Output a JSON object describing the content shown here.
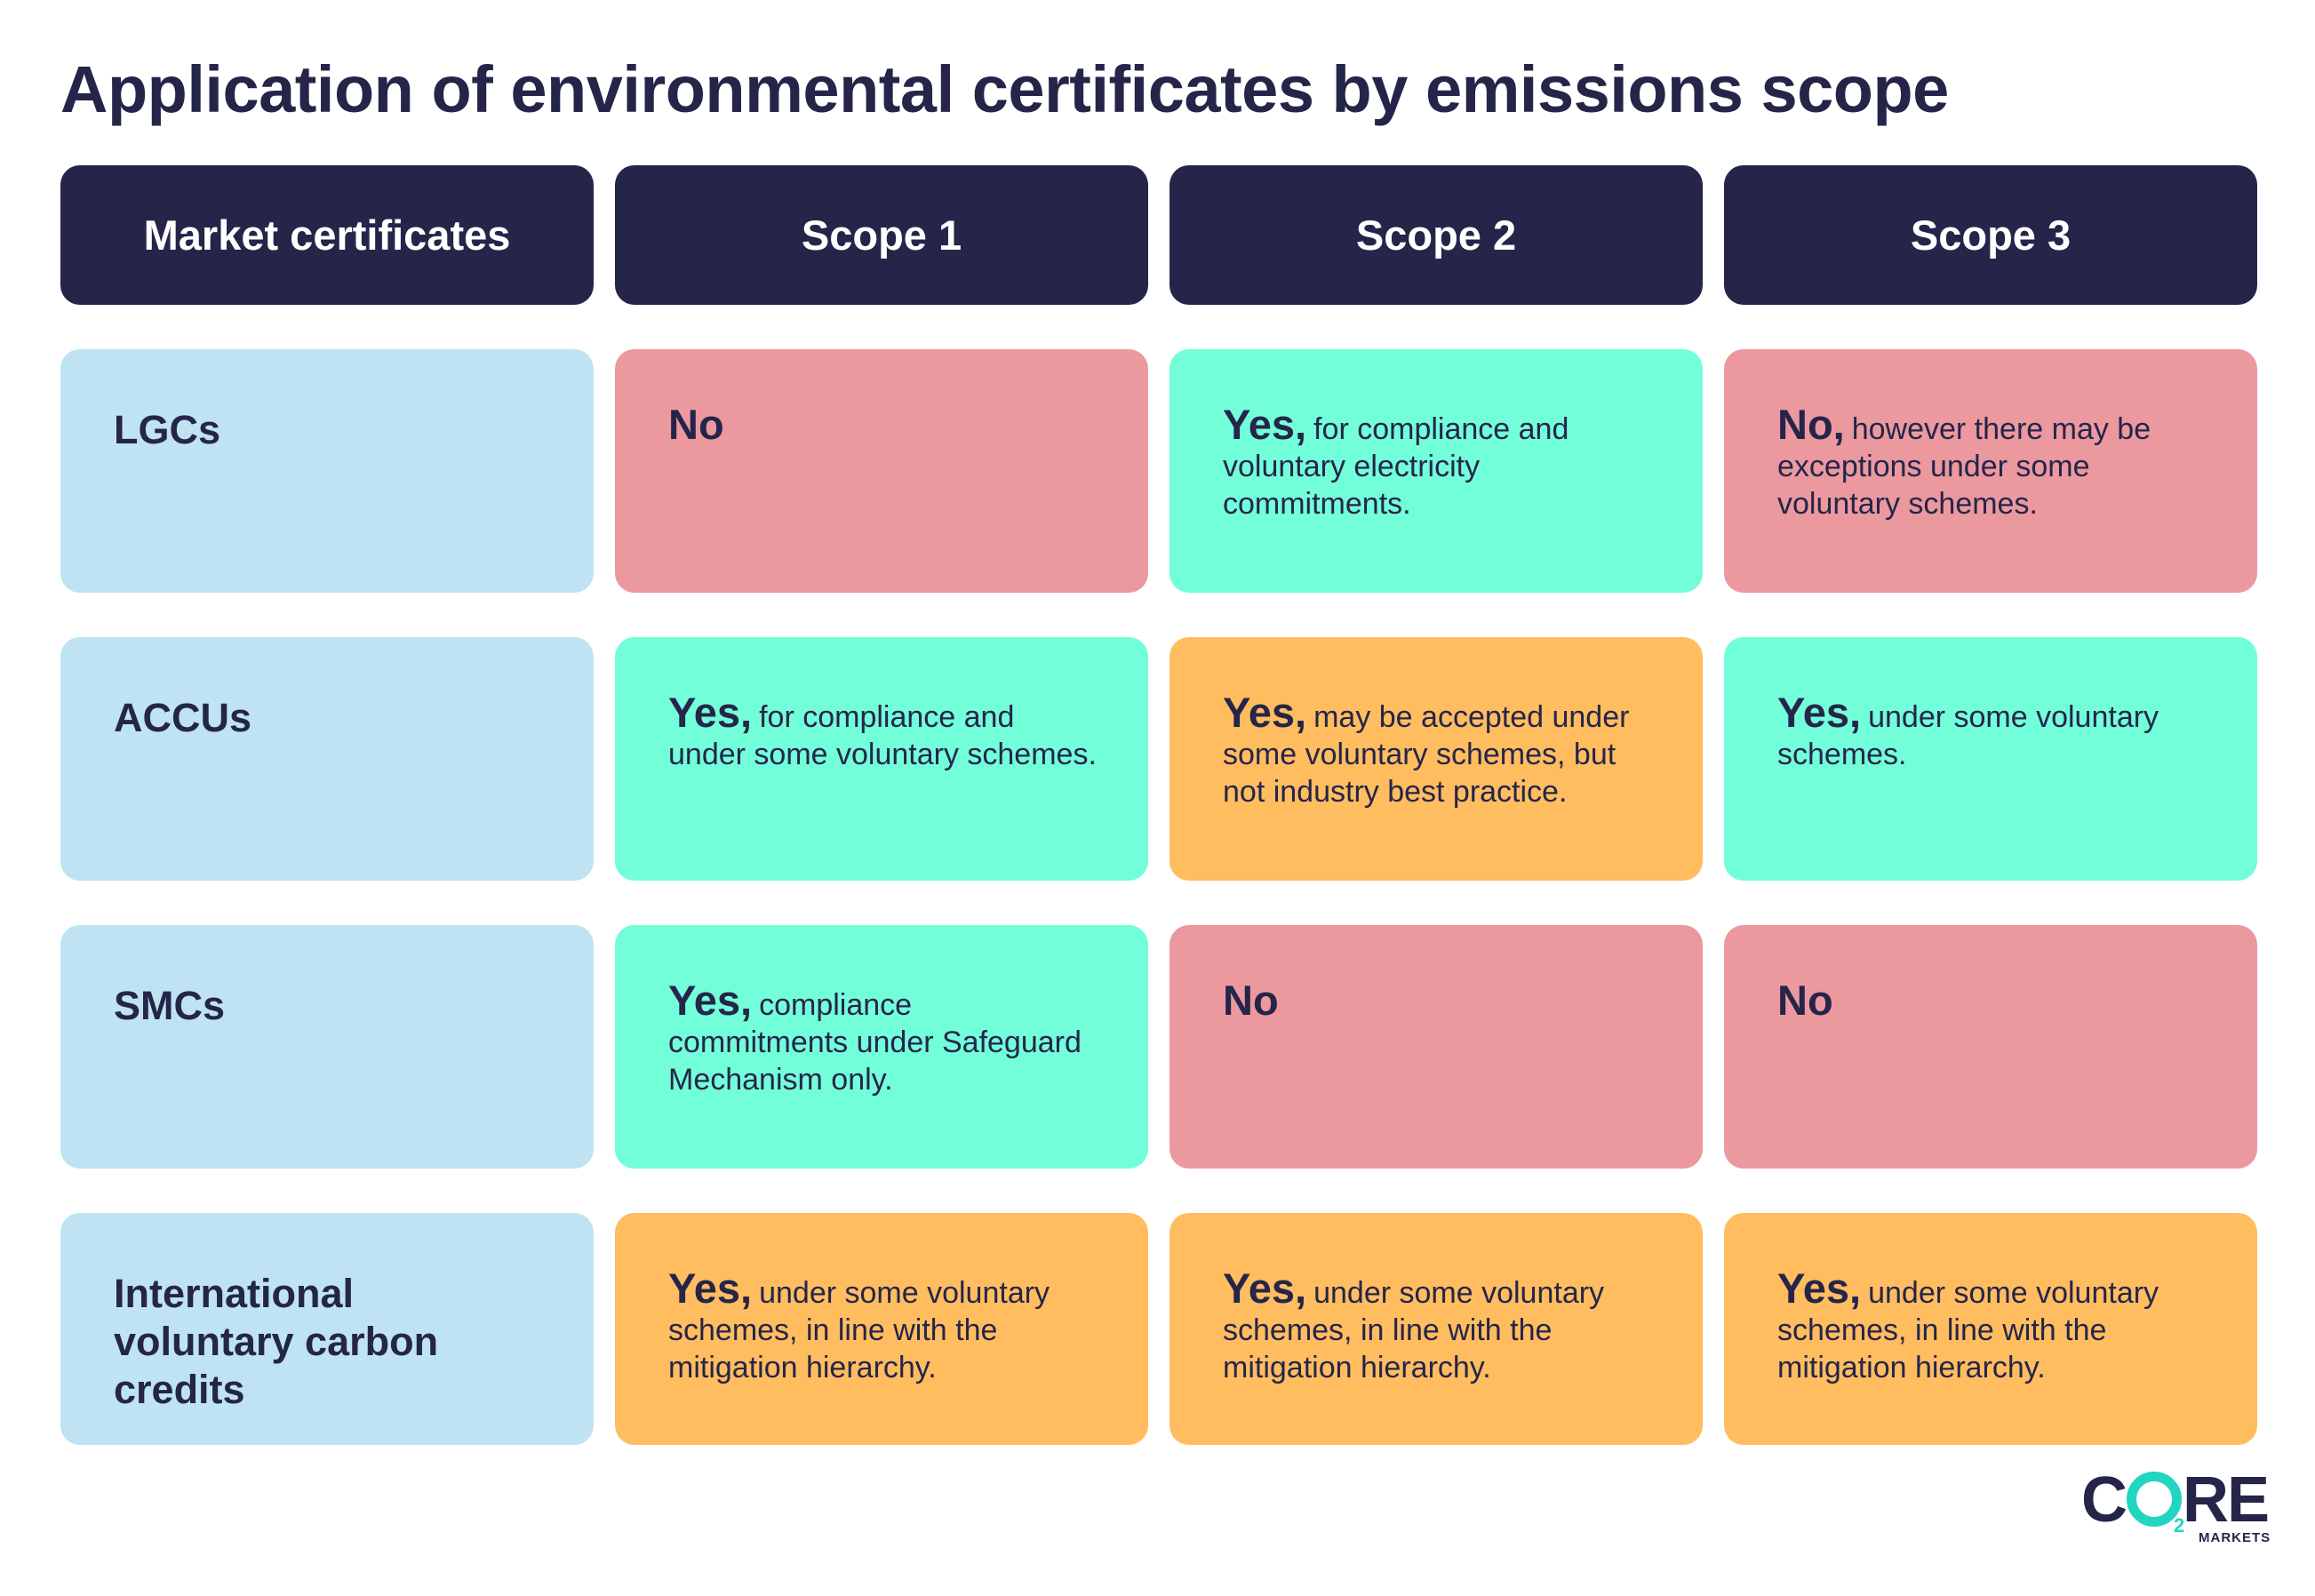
{
  "title": "Application of environmental certificates by emissions scope",
  "columns": [
    "Market certificates",
    "Scope 1",
    "Scope 2",
    "Scope 3"
  ],
  "colors": {
    "header": "#25254a",
    "label_cell": "#bfe3f2",
    "no": "#eb999e",
    "yes": "#72fed9",
    "partial": "#ffbd5f",
    "logo_accent": "#20d6c0"
  },
  "rows": [
    {
      "label": "LGCs",
      "cells": [
        {
          "lead": "No",
          "text": ""
        },
        {
          "lead": "Yes,",
          "text": "for compliance and voluntary electricity commitments."
        },
        {
          "lead": "No,",
          "text": "however there may be exceptions under some voluntary schemes."
        }
      ]
    },
    {
      "label": "ACCUs",
      "cells": [
        {
          "lead": "Yes,",
          "text": "for compliance and under some voluntary schemes."
        },
        {
          "lead": "Yes,",
          "text": "may be accepted under some voluntary schemes, but not industry best practice."
        },
        {
          "lead": "Yes,",
          "text": "under some voluntary schemes."
        }
      ]
    },
    {
      "label": "SMCs",
      "cells": [
        {
          "lead": "Yes,",
          "text": "compliance commitments under Safeguard Mechanism only."
        },
        {
          "lead": "No",
          "text": ""
        },
        {
          "lead": "No",
          "text": ""
        }
      ]
    },
    {
      "label": "International voluntary carbon credits",
      "cells": [
        {
          "lead": "Yes,",
          "text": "under some voluntary schemes, in line with the mitigation hierarchy."
        },
        {
          "lead": "Yes,",
          "text": "under some voluntary schemes, in line with the mitigation hierarchy."
        },
        {
          "lead": "Yes,",
          "text": "under some voluntary schemes, in line with the mitigation hierarchy."
        }
      ]
    }
  ],
  "logo": {
    "left": "C",
    "right": "RE",
    "subscript": "2",
    "sub": "MARKETS"
  }
}
